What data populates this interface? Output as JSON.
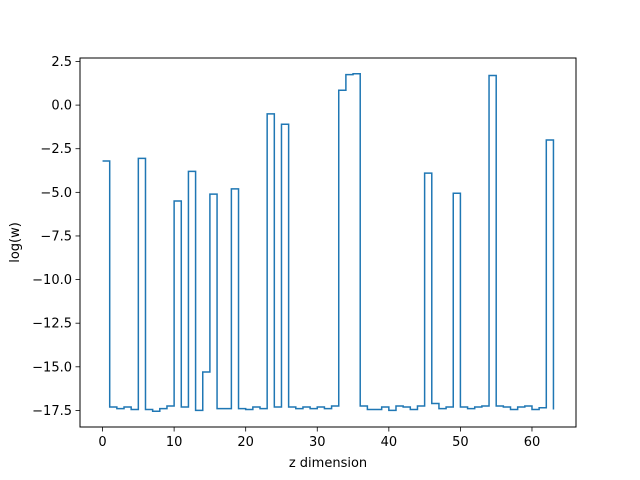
{
  "chart_data": {
    "type": "line",
    "drawstyle": "steps-post",
    "xlabel": "z dimension",
    "ylabel": "log(w)",
    "xlim": [
      -3.15,
      66.15
    ],
    "ylim": [
      -18.45,
      2.7
    ],
    "xticks": [
      0,
      10,
      20,
      30,
      40,
      50,
      60
    ],
    "yticks": [
      2.5,
      0.0,
      -2.5,
      -5.0,
      -7.5,
      -10.0,
      -12.5,
      -15.0,
      -17.5
    ],
    "ytick_labels": [
      "2.5",
      "0.0",
      "−2.5",
      "−5.0",
      "−7.5",
      "−10.0",
      "−12.5",
      "−15.0",
      "−17.5"
    ],
    "grid": false,
    "line_color": "#1f77b4",
    "series": [
      {
        "x": [
          0,
          1,
          2,
          3,
          4,
          5,
          6,
          7,
          8,
          9,
          10,
          11,
          12,
          13,
          14,
          15,
          16,
          17,
          18,
          19,
          20,
          21,
          22,
          23,
          24,
          25,
          26,
          27,
          28,
          29,
          30,
          31,
          32,
          33,
          34,
          35,
          36,
          37,
          38,
          39,
          40,
          41,
          42,
          43,
          44,
          45,
          46,
          47,
          48,
          49,
          50,
          51,
          52,
          53,
          54,
          55,
          56,
          57,
          58,
          59,
          60,
          61,
          62,
          63
        ],
        "values": [
          -3.2,
          -17.3,
          -17.4,
          -17.3,
          -17.45,
          -3.05,
          -17.45,
          -17.55,
          -17.4,
          -17.25,
          -5.5,
          -17.3,
          -3.8,
          -17.5,
          -15.3,
          -5.1,
          -17.4,
          -17.4,
          -4.8,
          -17.4,
          -17.45,
          -17.3,
          -17.4,
          -0.5,
          -17.3,
          -1.1,
          -17.3,
          -17.4,
          -17.3,
          -17.4,
          -17.3,
          -17.4,
          -17.25,
          0.85,
          1.75,
          1.8,
          -17.25,
          -17.45,
          -17.45,
          -17.3,
          -17.5,
          -17.25,
          -17.3,
          -17.45,
          -17.25,
          -3.9,
          -17.1,
          -17.4,
          -17.3,
          -5.05,
          -17.3,
          -17.4,
          -17.3,
          -17.25,
          1.7,
          -17.25,
          -17.3,
          -17.45,
          -17.3,
          -17.25,
          -17.45,
          -17.35,
          -2.0,
          -17.45
        ]
      }
    ]
  }
}
